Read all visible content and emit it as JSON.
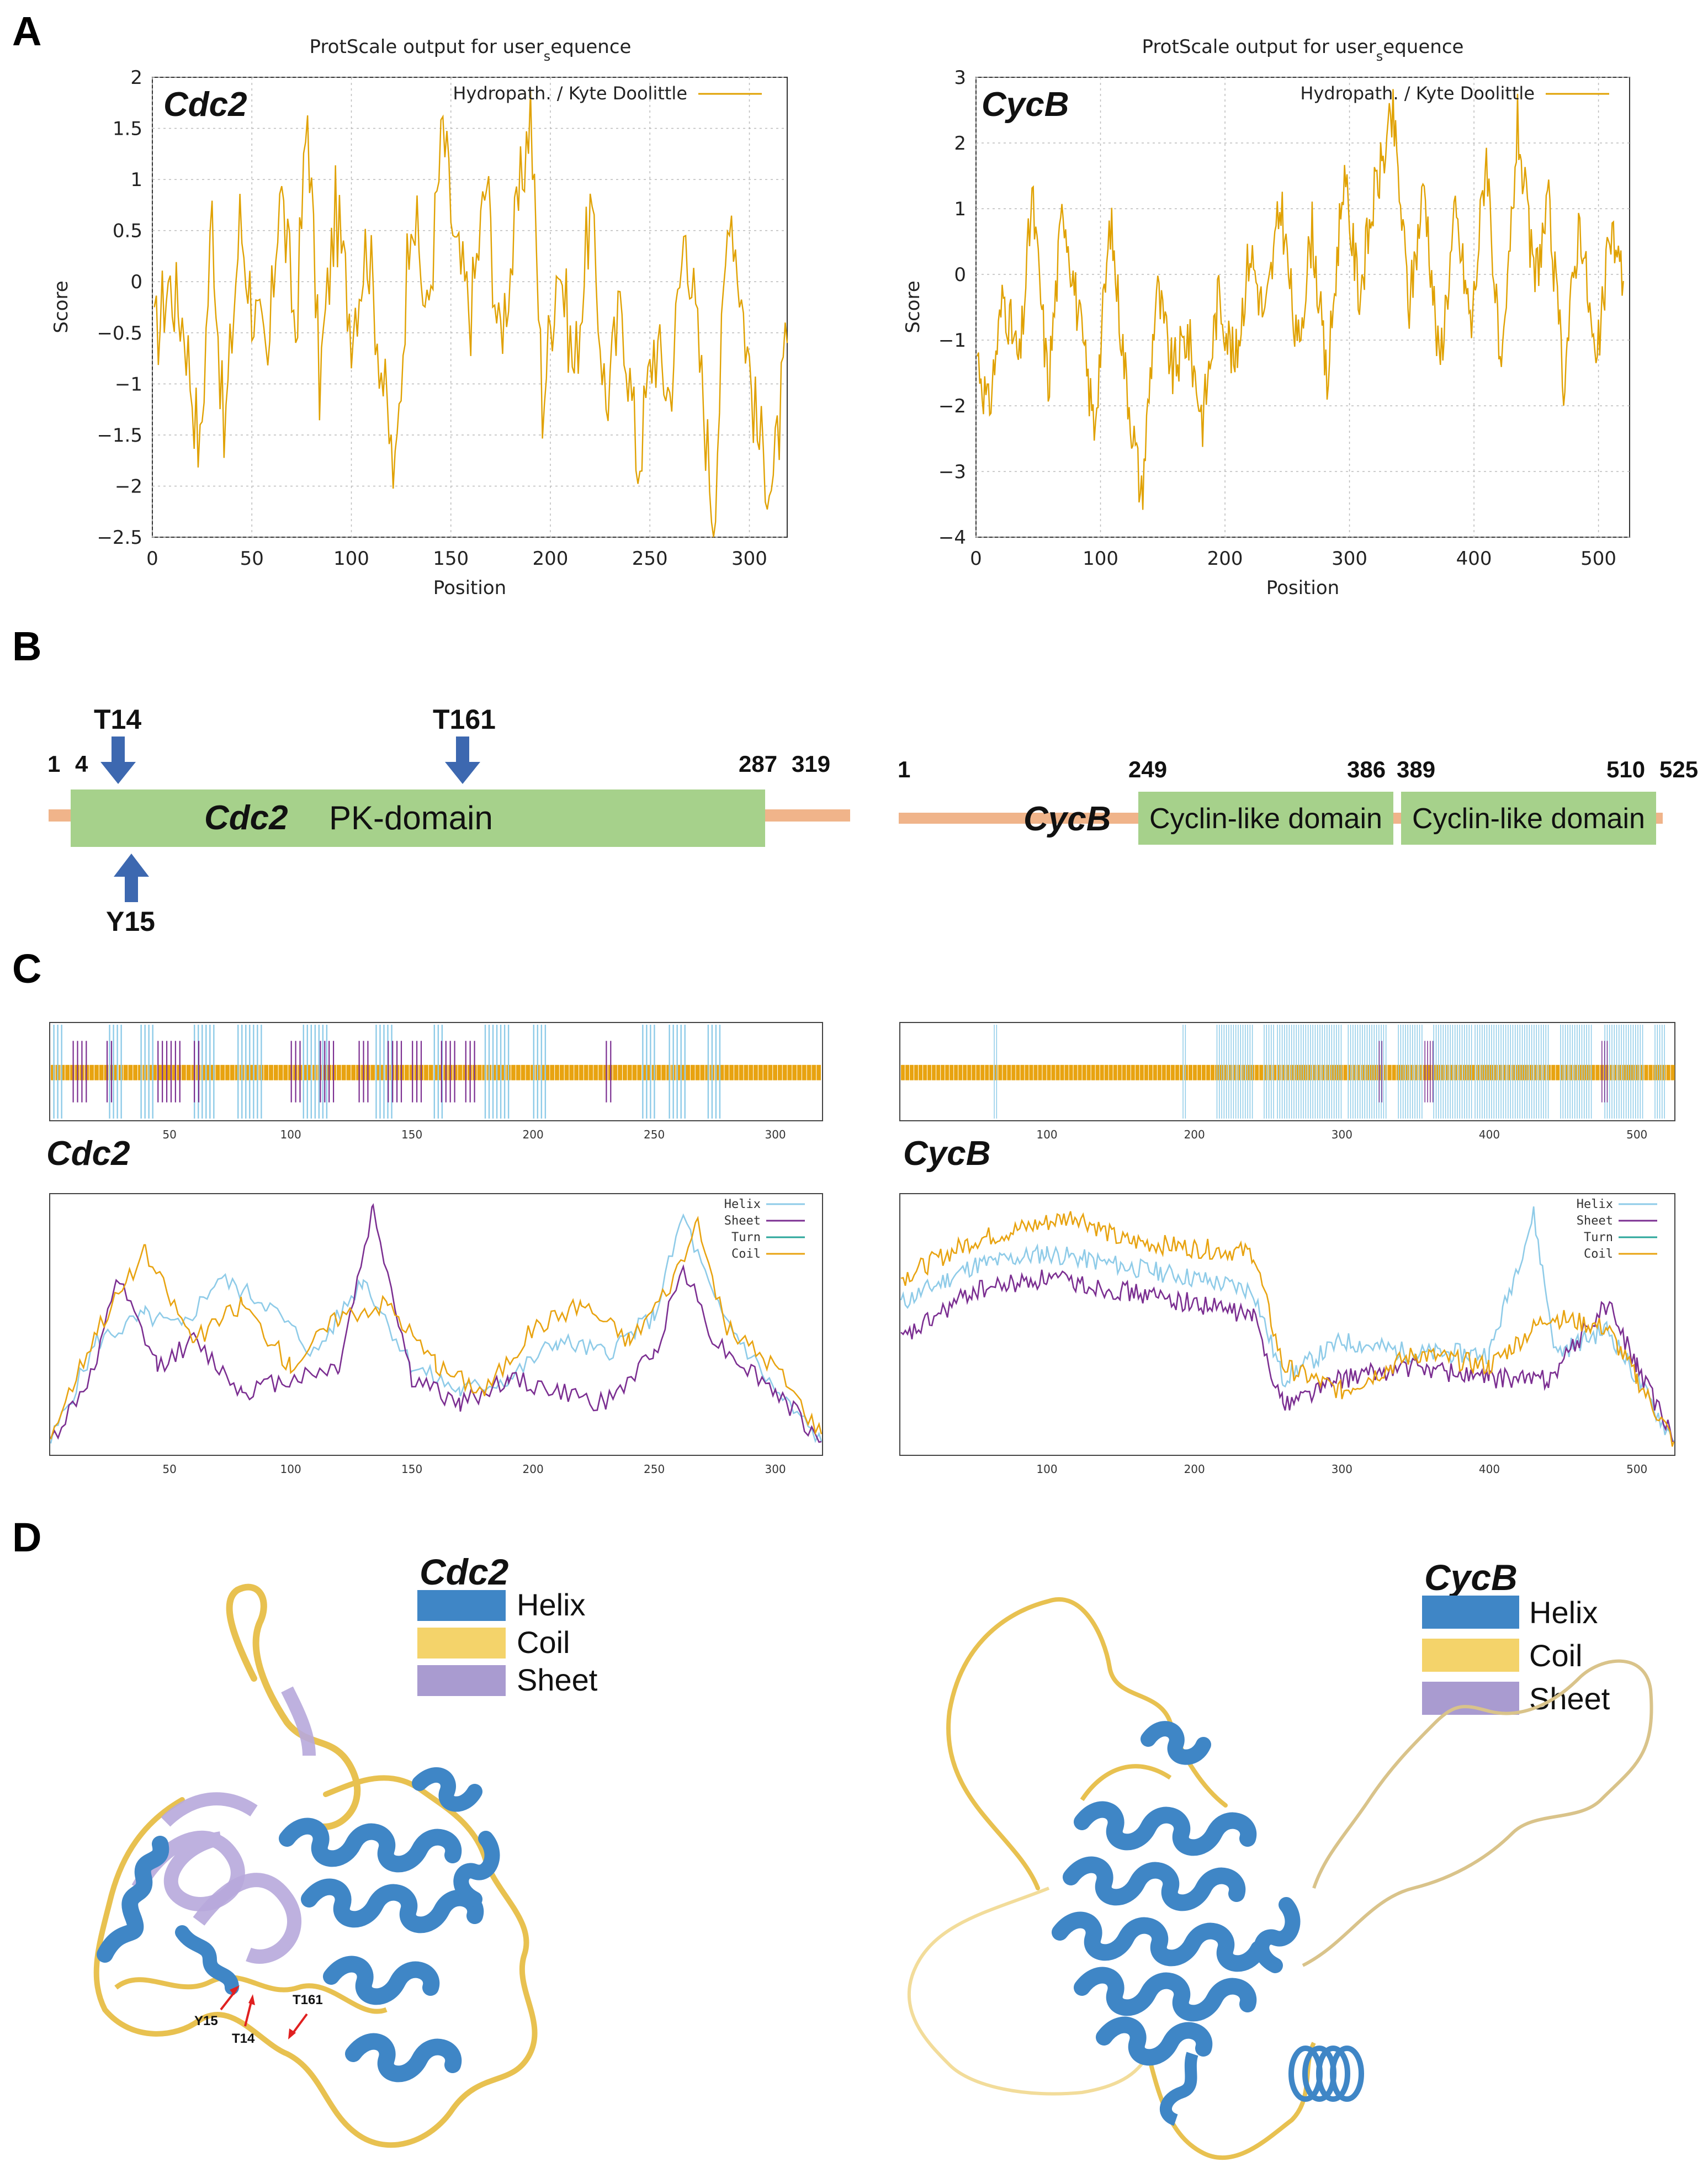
{
  "panels": {
    "A": "A",
    "B": "B",
    "C": "C",
    "D": "D"
  },
  "colors": {
    "hydro": "#e0a100",
    "helix": "#8ecbe8",
    "sheet": "#7b2e91",
    "turn": "#2aa69a",
    "coil": "#e8a310",
    "domain": "#a6d18b",
    "linker": "#f0b48a",
    "arrow": "#3d68b0",
    "d_helix": "#3f86c6",
    "d_coil": "#f4d36a",
    "d_sheet": "#a99bd0",
    "red": "#e02020"
  },
  "hydropathy": {
    "cdc2": {
      "title": "ProtScale output for user",
      "title_sub": "s",
      "title_tail": "equence",
      "label": "Cdc2",
      "legend": "Hydropath. / Kyte  Doolittle",
      "xlabel": "Position",
      "ylabel": "Score",
      "xticks": [
        "0",
        "50",
        "100",
        "150",
        "200",
        "250",
        "300"
      ],
      "yticks": [
        "2",
        "1.5",
        "1",
        "0.5",
        "0",
        "−0.5",
        "−1",
        "−1.5",
        "−2",
        "−2.5"
      ]
    },
    "cycb": {
      "title": "ProtScale output for user",
      "title_sub": "s",
      "title_tail": "equence",
      "label": "CycB",
      "legend": "Hydropath. / Kyte  Doolittle",
      "xlabel": "Position",
      "ylabel": "Score",
      "xticks": [
        "0",
        "100",
        "200",
        "300",
        "400",
        "500"
      ],
      "yticks": [
        "3",
        "2",
        "1",
        "0",
        "−1",
        "−2",
        "−3",
        "−4"
      ]
    }
  },
  "chart_data": [
    {
      "type": "line",
      "title": "ProtScale output for user_sequence (Cdc2)",
      "xlabel": "Position",
      "ylabel": "Score",
      "xlim": [
        0,
        319
      ],
      "ylim": [
        -2.5,
        2
      ],
      "series": [
        {
          "name": "Hydropath. / Kyte  Doolittle",
          "x": [
            1,
            8,
            16,
            24,
            30,
            36,
            44,
            50,
            58,
            64,
            72,
            78,
            84,
            92,
            100,
            108,
            116,
            122,
            130,
            138,
            146,
            152,
            160,
            168,
            174,
            182,
            190,
            196,
            204,
            212,
            220,
            228,
            236,
            244,
            252,
            260,
            268,
            276,
            282,
            290,
            298,
            304,
            312,
            319
          ],
          "values": [
            -0.6,
            0.0,
            -0.4,
            -1.7,
            0.7,
            -1.6,
            0.6,
            -0.2,
            -0.9,
            1.0,
            -0.5,
            1.7,
            -1.0,
            0.7,
            -0.4,
            0.4,
            -1.0,
            -2.0,
            0.9,
            -0.4,
            1.5,
            0.3,
            -0.3,
            1.0,
            -0.6,
            0.4,
            1.7,
            -1.2,
            0.3,
            -0.9,
            0.7,
            -1.2,
            -0.2,
            -1.8,
            -0.6,
            -1.1,
            0.6,
            -1.0,
            -2.3,
            0.9,
            -0.5,
            -1.5,
            -2.0,
            -0.6
          ]
        }
      ]
    },
    {
      "type": "line",
      "title": "ProtScale output for user_sequence (CycB)",
      "xlabel": "Position",
      "ylabel": "Score",
      "xlim": [
        0,
        525
      ],
      "ylim": [
        -4,
        3
      ],
      "series": [
        {
          "name": "Hydropath. / Kyte  Doolittle",
          "x": [
            1,
            10,
            22,
            35,
            45,
            58,
            70,
            82,
            95,
            108,
            120,
            133,
            145,
            158,
            170,
            182,
            195,
            208,
            220,
            232,
            245,
            258,
            270,
            282,
            295,
            308,
            320,
            335,
            348,
            360,
            372,
            385,
            398,
            410,
            422,
            435,
            448,
            460,
            472,
            485,
            498,
            510,
            520
          ],
          "values": [
            -1.2,
            -2.1,
            -0.3,
            -1.4,
            1.2,
            -1.7,
            1.1,
            -0.6,
            -2.3,
            0.8,
            -1.5,
            -3.4,
            -0.2,
            -1.5,
            -0.9,
            -2.2,
            -0.3,
            -1.4,
            0.4,
            -0.7,
            1.1,
            -1.2,
            0.7,
            -1.7,
            1.5,
            -0.3,
            1.2,
            2.4,
            -0.5,
            1.4,
            -1.4,
            0.9,
            -0.8,
            1.9,
            -1.8,
            2.3,
            -0.1,
            1.0,
            -1.6,
            0.9,
            -1.5,
            0.7,
            -0.1
          ]
        }
      ]
    },
    {
      "type": "line",
      "title": "Secondary structure prediction (Cdc2)",
      "xlim": [
        1,
        319
      ],
      "series": [
        {
          "name": "Helix",
          "x": [
            1,
            20,
            40,
            55,
            70,
            90,
            110,
            130,
            150,
            170,
            190,
            210,
            230,
            250,
            262,
            275,
            300,
            319
          ],
          "values": [
            0.05,
            0.45,
            0.55,
            0.5,
            0.7,
            0.6,
            0.4,
            0.7,
            0.35,
            0.25,
            0.3,
            0.45,
            0.4,
            0.55,
            0.95,
            0.6,
            0.25,
            0.05
          ]
        },
        {
          "name": "Sheet",
          "x": [
            1,
            20,
            28,
            45,
            60,
            80,
            100,
            120,
            134,
            150,
            170,
            190,
            210,
            230,
            250,
            262,
            275,
            300,
            319
          ],
          "values": [
            0.05,
            0.35,
            0.7,
            0.35,
            0.45,
            0.25,
            0.3,
            0.35,
            0.98,
            0.3,
            0.2,
            0.3,
            0.25,
            0.2,
            0.4,
            0.75,
            0.45,
            0.25,
            0.05
          ]
        },
        {
          "name": "Turn",
          "x": [
            1,
            319
          ],
          "values": [
            0.0,
            0.0
          ]
        },
        {
          "name": "Coil",
          "x": [
            1,
            20,
            40,
            60,
            80,
            100,
            120,
            140,
            160,
            180,
            200,
            220,
            240,
            255,
            268,
            280,
            300,
            319
          ],
          "values": [
            0.08,
            0.5,
            0.8,
            0.45,
            0.6,
            0.35,
            0.55,
            0.6,
            0.35,
            0.25,
            0.5,
            0.6,
            0.45,
            0.65,
            0.9,
            0.5,
            0.35,
            0.08
          ]
        }
      ]
    },
    {
      "type": "line",
      "title": "Secondary structure prediction (CycB)",
      "xlim": [
        1,
        525
      ],
      "series": [
        {
          "name": "Helix",
          "x": [
            1,
            50,
            100,
            150,
            200,
            240,
            260,
            300,
            350,
            400,
            430,
            445,
            480,
            525
          ],
          "values": [
            0.6,
            0.75,
            0.8,
            0.75,
            0.7,
            0.65,
            0.3,
            0.45,
            0.4,
            0.4,
            0.95,
            0.4,
            0.5,
            0.05
          ]
        },
        {
          "name": "Sheet",
          "x": [
            1,
            50,
            100,
            150,
            200,
            240,
            260,
            300,
            350,
            400,
            440,
            480,
            500,
            525
          ],
          "values": [
            0.45,
            0.65,
            0.7,
            0.65,
            0.6,
            0.55,
            0.2,
            0.3,
            0.35,
            0.3,
            0.3,
            0.6,
            0.35,
            0.05
          ]
        },
        {
          "name": "Turn",
          "x": [
            1,
            525
          ],
          "values": [
            0.0,
            0.0
          ]
        },
        {
          "name": "Coil",
          "x": [
            1,
            50,
            120,
            150,
            200,
            240,
            260,
            300,
            350,
            400,
            440,
            480,
            500,
            525
          ],
          "values": [
            0.7,
            0.85,
            0.95,
            0.85,
            0.82,
            0.8,
            0.35,
            0.25,
            0.4,
            0.35,
            0.55,
            0.5,
            0.3,
            0.05
          ]
        }
      ]
    }
  ],
  "domains": {
    "cdc2": {
      "label": "Cdc2",
      "domain": "PK-domain",
      "positions": [
        "1",
        "4",
        "287",
        "319"
      ],
      "sites_top": [
        "T14",
        "T161"
      ],
      "sites_bottom": [
        "Y15"
      ]
    },
    "cycb": {
      "label": "CycB",
      "domain1": "Cyclin-like domain",
      "domain2": "Cyclin-like domain",
      "positions": [
        "1",
        "249",
        "386",
        "389",
        "510",
        "525"
      ]
    }
  },
  "secstruct": {
    "cdc2": {
      "label": "Cdc2",
      "ticks": [
        "50",
        "100",
        "150",
        "200",
        "250",
        "300"
      ],
      "legend": [
        "Helix",
        "Sheet",
        "Turn",
        "Coil"
      ]
    },
    "cycb": {
      "label": "CycB",
      "ticks": [
        "100",
        "200",
        "300",
        "400",
        "500"
      ],
      "legend": [
        "Helix",
        "Sheet",
        "Turn",
        "Coil"
      ]
    }
  },
  "structure3d": {
    "cdc2": {
      "title": "Cdc2",
      "legend": [
        "Helix",
        "Coil",
        "Sheet"
      ],
      "annotations": [
        "Y15",
        "T14",
        "T161"
      ]
    },
    "cycb": {
      "title": "CycB",
      "legend": [
        "Helix",
        "Coil",
        "Sheet"
      ]
    }
  }
}
